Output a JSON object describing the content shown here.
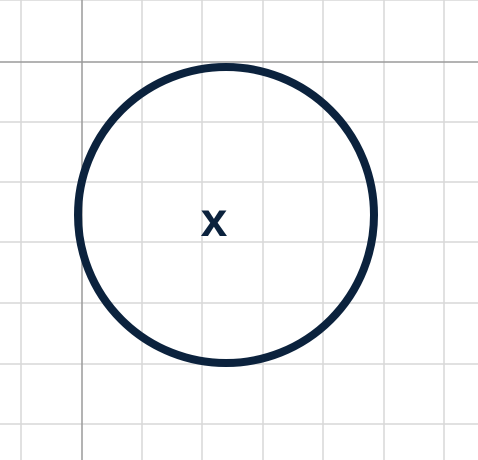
{
  "diagram": {
    "circle_label": "x",
    "colors": {
      "circle": "#0b223d",
      "grid": "#d7d7d7",
      "axis": "#9a9a9a",
      "background": "#ffffff"
    }
  }
}
